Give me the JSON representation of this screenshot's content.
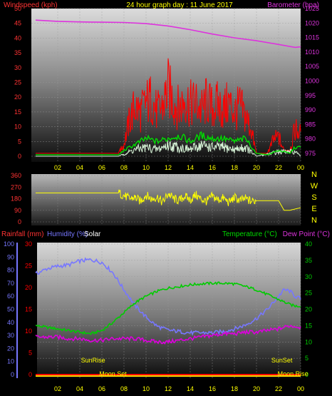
{
  "header": {
    "title": "24 hour graph day : 11 June 2017",
    "left_label": "Windspeed (kph)",
    "right_label": "Barometer (hpa)"
  },
  "x_ticks": [
    "02",
    "04",
    "06",
    "08",
    "10",
    "12",
    "14",
    "16",
    "18",
    "20",
    "22",
    "00"
  ],
  "colors": {
    "wind": "#ff0000",
    "gust": "#ff0000",
    "wind_avg": "#00dd00",
    "wind_lull": "#d8f5d8",
    "barometer": "#dd33dd",
    "direction": "#ffff00",
    "rainfall": "#ff0000",
    "humidity": "#7777ff",
    "temperature": "#00cc00",
    "dewpoint": "#dd00dd",
    "axis_left": "#ff3333",
    "axis_right": "#dd33dd",
    "title": "#ffff00",
    "dir_labels": "#ffff00",
    "solar": "#ffffff"
  },
  "chart_data": [
    {
      "type": "line",
      "name": "wind-barometer",
      "title": "24 hour graph day : 11 June 2017",
      "ylabel": "Windspeed (kph)",
      "y2label": "Barometer (hpa)",
      "ylim": [
        0,
        50
      ],
      "y2lim": [
        974,
        1025
      ],
      "y_ticks": [
        0,
        5,
        10,
        15,
        20,
        25,
        30,
        35,
        40,
        45,
        50
      ],
      "y2_ticks": [
        975,
        980,
        985,
        990,
        995,
        1000,
        1005,
        1010,
        1015,
        1020,
        1025
      ],
      "series": [
        {
          "key": "barometer",
          "axis": "right",
          "x": [
            0,
            2,
            4,
            6,
            8,
            10,
            12,
            14,
            16,
            18,
            20,
            22,
            23.5,
            24
          ],
          "values": [
            1021.0,
            1020.6,
            1020.4,
            1020.3,
            1020.2,
            1019.8,
            1019.0,
            1017.7,
            1016.2,
            1014.9,
            1013.9,
            1012.6,
            1011.6,
            1011.8
          ]
        },
        {
          "key": "gust",
          "axis": "left",
          "note_x": "hours",
          "x": [
            0,
            7.5,
            8,
            8.5,
            9,
            9.5,
            10,
            10.5,
            11,
            11.5,
            12,
            12.5,
            13,
            13.5,
            14,
            14.5,
            15,
            15.5,
            16,
            16.5,
            17,
            17.5,
            18,
            18.5,
            19,
            19.5,
            20,
            21,
            21.5,
            22,
            22.5,
            23,
            23.5,
            24
          ],
          "values": [
            1,
            1,
            6,
            18,
            25,
            22,
            27,
            29,
            22,
            25,
            34,
            27,
            24,
            29,
            26,
            27,
            23,
            28,
            24,
            26,
            23,
            27,
            22,
            25,
            20,
            14,
            1,
            1,
            8,
            10,
            2,
            2,
            14,
            11
          ]
        },
        {
          "key": "wind_avg",
          "axis": "left",
          "x": [
            0,
            7.5,
            8,
            9,
            10,
            11,
            12,
            13,
            14,
            15,
            16,
            17,
            18,
            19,
            20,
            21,
            22,
            23,
            23.5,
            24
          ],
          "values": [
            0.5,
            0.5,
            2,
            4,
            6,
            5,
            6,
            7,
            5,
            7,
            6,
            6,
            5,
            6,
            1,
            0.5,
            2,
            1,
            3,
            3
          ]
        },
        {
          "key": "wind_lull",
          "axis": "left",
          "x": [
            0,
            7.5,
            8,
            9,
            10,
            11,
            12,
            13,
            14,
            15,
            16,
            17,
            18,
            19,
            20,
            22,
            23.5,
            24
          ],
          "values": [
            0,
            0,
            1,
            3,
            4,
            3,
            5,
            4,
            3,
            5,
            4,
            4,
            3,
            4,
            0,
            2,
            2,
            0
          ]
        }
      ]
    },
    {
      "type": "line",
      "name": "wind-direction",
      "ylim": [
        0,
        360
      ],
      "y_ticks": [
        0,
        90,
        180,
        270,
        360
      ],
      "y2_ticks": [
        "N",
        "W",
        "S",
        "E",
        "N"
      ],
      "series": [
        {
          "key": "direction",
          "x": [
            0,
            7,
            7.5,
            8,
            8.5,
            9,
            9.5,
            10,
            10.5,
            11,
            11.5,
            12,
            12.5,
            13,
            13.5,
            14,
            14.5,
            15,
            15.5,
            16,
            16.5,
            17,
            17.5,
            18,
            18.5,
            19,
            19.5,
            20,
            21,
            22,
            22.5,
            23,
            23.5,
            24
          ],
          "values": [
            225,
            225,
            225,
            205,
            180,
            190,
            160,
            210,
            175,
            195,
            150,
            220,
            180,
            165,
            200,
            170,
            210,
            175,
            160,
            200,
            170,
            185,
            150,
            190,
            165,
            180,
            160,
            165,
            165,
            165,
            90,
            90,
            100,
            110
          ]
        }
      ]
    },
    {
      "type": "line",
      "name": "rain-humidity-temp",
      "header_labels": [
        "Rainfall (mm)",
        "Humidity (%)",
        "Solar",
        "Temperature (°C)",
        "Dew Point (°C)"
      ],
      "ylim_humidity": [
        0,
        100
      ],
      "ylim_rainfall": [
        0,
        30
      ],
      "ylim_temp": [
        0,
        40
      ],
      "y_ticks_humidity": [
        0,
        10,
        20,
        30,
        40,
        50,
        60,
        70,
        80,
        90,
        100
      ],
      "y_ticks_rainfall": [
        0,
        5,
        10,
        15,
        20,
        25,
        30
      ],
      "y_ticks_temp": [
        0,
        5,
        10,
        15,
        20,
        25,
        30,
        35,
        40
      ],
      "annotations": [
        {
          "text": "SunRise",
          "x": 5.2
        },
        {
          "text": "SunSet",
          "x": 22.3
        },
        {
          "text": "Moon Set",
          "x": 7.0
        },
        {
          "text": "Moon Rise",
          "x": 23.3
        }
      ],
      "series": [
        {
          "key": "humidity",
          "axis": "humidity",
          "x": [
            0,
            1,
            2,
            3,
            4,
            5,
            5.5,
            6,
            7,
            8,
            9,
            10,
            11,
            12,
            13,
            14,
            15,
            16,
            17,
            18,
            19,
            20,
            21,
            22,
            22.5,
            23,
            23.5,
            24
          ],
          "values": [
            77,
            81,
            83,
            84,
            87,
            88,
            87,
            86,
            78,
            65,
            53,
            44,
            37,
            34,
            33,
            32,
            32,
            32,
            33,
            35,
            38,
            43,
            50,
            60,
            65,
            64,
            60,
            58
          ]
        },
        {
          "key": "temperature",
          "axis": "temp",
          "x": [
            0,
            1,
            2,
            3,
            4,
            5,
            6,
            7,
            8,
            9,
            10,
            11,
            12,
            13,
            14,
            15,
            16,
            17,
            18,
            19,
            20,
            21,
            22,
            23,
            23.5,
            24
          ],
          "values": [
            15,
            14.5,
            14,
            13.5,
            13,
            12.5,
            13.5,
            16,
            19,
            22,
            24,
            25.5,
            26.5,
            27,
            27.5,
            27.8,
            28,
            28,
            27.8,
            27,
            26,
            24.5,
            23,
            21.5,
            21,
            21
          ]
        },
        {
          "key": "dewpoint",
          "axis": "temp",
          "x": [
            0,
            1,
            2,
            3,
            4,
            5,
            6,
            7,
            8,
            9,
            10,
            11,
            12,
            13,
            14,
            15,
            16,
            17,
            18,
            19,
            20,
            21,
            22,
            23,
            24
          ],
          "values": [
            11.5,
            11.5,
            11.5,
            11,
            11,
            10.5,
            10.5,
            11,
            11,
            11,
            10.5,
            10,
            10,
            10.5,
            11,
            11.5,
            12,
            12.5,
            12.5,
            13,
            13,
            13.5,
            14,
            15,
            14.5
          ]
        },
        {
          "key": "rainfall",
          "axis": "rainfall",
          "x": [
            0,
            24
          ],
          "values": [
            0,
            0
          ]
        }
      ]
    }
  ]
}
